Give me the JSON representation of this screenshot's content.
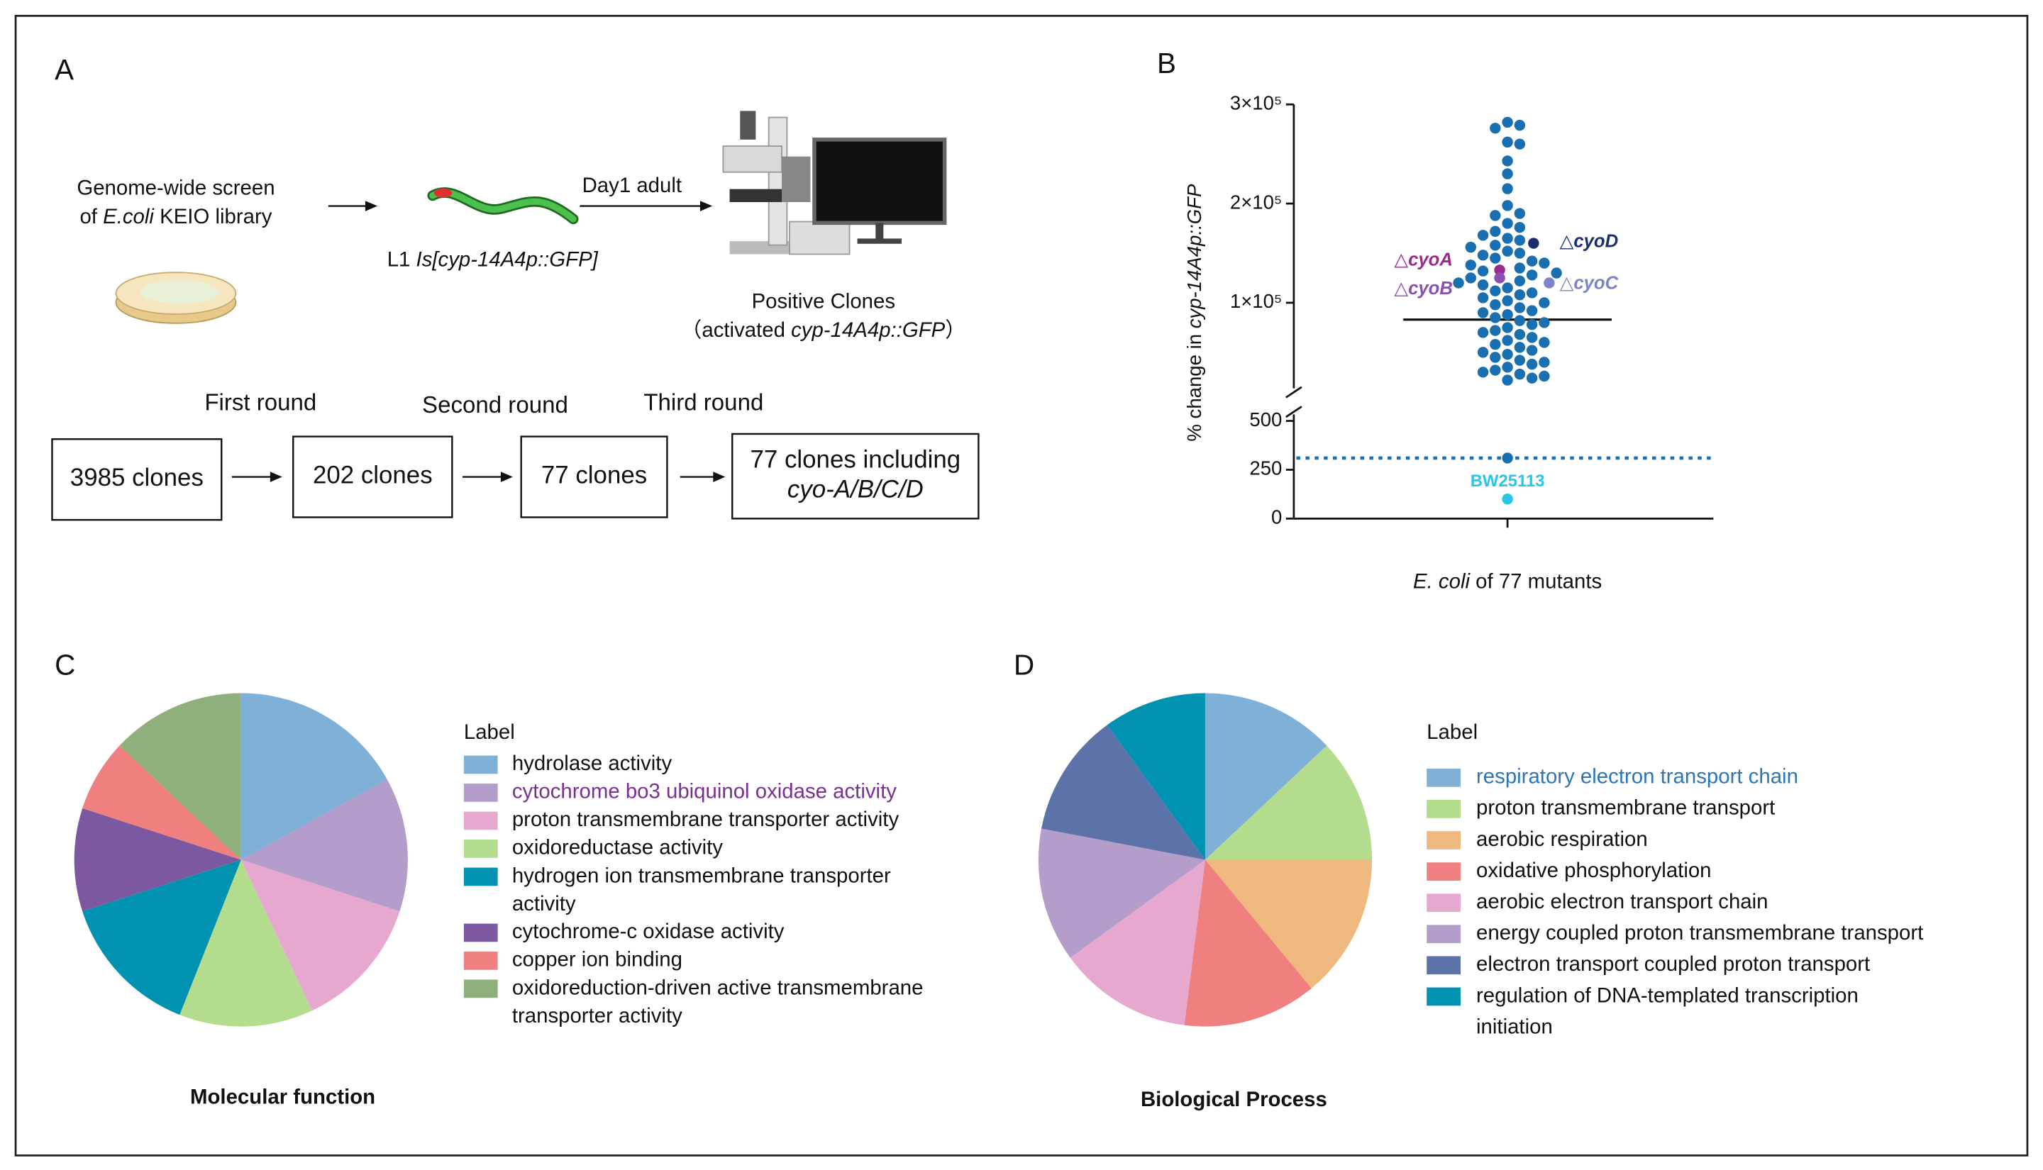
{
  "panel_labels": [
    "A",
    "B",
    "C",
    "D"
  ],
  "diagram": {
    "library_label": [
      [
        {
          "text": "Genome-wide screen"
        }
      ],
      [
        {
          "text": "of "
        },
        {
          "text": "E.coli",
          "italic": true
        },
        {
          "text": " KEIO library"
        }
      ]
    ],
    "worm_label": [
      [
        {
          "text": "L1 "
        },
        {
          "text": "Is[cyp-14A4p::GFP]",
          "italic": true
        }
      ]
    ],
    "stage_label": [
      [
        {
          "text": "Day1 adult"
        }
      ]
    ],
    "result_label": [
      [
        {
          "text": "Positive Clones"
        }
      ],
      [
        {
          "text": "（activated "
        },
        {
          "text": "cyp-14A4p::GFP",
          "italic": true
        },
        {
          "text": "）"
        }
      ]
    ],
    "rounds": [
      "First round",
      "Second round",
      "Third round"
    ],
    "boxes": [
      [
        [
          {
            "text": "3985 clones"
          }
        ]
      ],
      [
        [
          {
            "text": "202 clones"
          }
        ]
      ],
      [
        [
          {
            "text": "77 clones"
          }
        ]
      ],
      [
        [
          {
            "text": "77 clones including"
          }
        ],
        [
          {
            "text": "cyo-A/B/C/D",
            "italic": true
          }
        ]
      ]
    ]
  },
  "chart_data": [
    {
      "type": "strip",
      "ylabel": [
        [
          {
            "text": "% change in "
          },
          {
            "text": "cyp-14A4p::GFP",
            "italic": true
          }
        ]
      ],
      "xlabel": [
        [
          {
            "text": "E. coli",
            "italic": true
          },
          {
            "text": " of 77 mutants"
          }
        ]
      ],
      "ylim": [
        15000,
        300000
      ],
      "yticks": [
        {
          "value": 100000,
          "label": "1×10⁵"
        },
        {
          "value": 200000,
          "label": "2×10⁵"
        },
        {
          "value": 300000,
          "label": "3×10⁵"
        }
      ],
      "y2lim": [
        0,
        500
      ],
      "y2ticks": [
        0,
        250,
        500
      ],
      "median": 83000,
      "reference_line": {
        "axis": "y2",
        "value": 310
      },
      "series": [
        {
          "color": "#1a6fb0",
          "values": [
            282000,
            279000,
            276000,
            262000,
            260000,
            243000,
            230000,
            215000,
            198000,
            190000,
            188000,
            180000,
            176000,
            172000,
            168000,
            165000,
            163000,
            158000,
            156000,
            152000,
            150000,
            148000,
            145000,
            142000,
            140000,
            138000,
            135000,
            132000,
            130000,
            128000,
            125000,
            122000,
            120000,
            118000,
            115000,
            112000,
            110000,
            108000,
            105000,
            102000,
            100000,
            98000,
            95000,
            92000,
            90000,
            88000,
            85000,
            82000,
            80000,
            78000,
            75000,
            72000,
            70000,
            68000,
            65000,
            62000,
            60000,
            58000,
            55000,
            52000,
            50000,
            48000,
            45000,
            42000,
            40000,
            38000,
            35000,
            32000,
            30000,
            28000,
            26000,
            24000,
            22000
          ]
        },
        {
          "name": "△cyoA",
          "color": "#9b2a8e",
          "values": [
            133000
          ]
        },
        {
          "name": "△cyoB",
          "color": "#8a4fb0",
          "values": [
            125000
          ]
        },
        {
          "name": "△cyoD",
          "color": "#1b2f6e",
          "values": [
            160000
          ]
        },
        {
          "name": "△cyoC",
          "color": "#7b84c6",
          "values": [
            120000
          ]
        },
        {
          "axis": "y2",
          "color": "#1a6fb0",
          "values": [
            310
          ]
        },
        {
          "name": "BW25113",
          "axis": "y2",
          "color": "#29c6ea",
          "values": [
            100
          ]
        }
      ]
    },
    {
      "type": "pie",
      "title": "Molecular function",
      "legend_title": "Label",
      "categories": [
        "hydrolase activity",
        "cytochrome bo3 ubiquinol oxidase activity",
        "proton transmembrane transporter activity",
        "oxidoreductase activity",
        "hydrogen ion transmembrane transporter activity",
        "cytochrome-c oxidase activity",
        "copper ion binding",
        "oxidoreduction-driven active transmembrane transporter activity"
      ],
      "values": [
        17,
        13,
        13,
        13,
        14,
        10,
        7,
        13
      ],
      "colors": [
        "#7fb0d8",
        "#b49ccb",
        "#e6a8cf",
        "#b3dc8c",
        "#0092b0",
        "#7c58a0",
        "#f08080",
        "#8fb07a"
      ],
      "highlight_label": {
        "index": 1,
        "color": "#7b2f94"
      }
    },
    {
      "type": "pie",
      "title": "Biological Process",
      "legend_title": "Label",
      "categories": [
        "respiratory electron transport chain",
        "proton transmembrane transport",
        "aerobic respiration",
        "oxidative phosphorylation",
        "aerobic electron transport chain",
        "energy coupled proton transmembrane transport",
        "electron transport coupled proton transport",
        "regulation of DNA-templated transcription initiation"
      ],
      "values": [
        13,
        12,
        14,
        13,
        13,
        13,
        12,
        10
      ],
      "colors": [
        "#7fb0d8",
        "#b3dc8c",
        "#efb87e",
        "#f08080",
        "#e6a8cf",
        "#b49ccb",
        "#5b73a8",
        "#0092b0"
      ],
      "highlight_label": {
        "index": 0,
        "color": "#2e75b6"
      }
    }
  ]
}
